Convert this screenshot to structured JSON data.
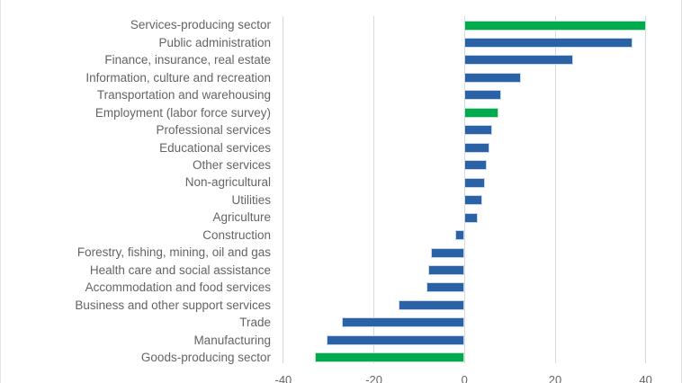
{
  "chart_data": {
    "type": "bar",
    "orientation": "horizontal",
    "title": "",
    "xlabel": "",
    "ylabel": "",
    "legend": "none",
    "grid": "vertical",
    "xlim": [
      -40,
      40
    ],
    "x_ticks": [
      -40,
      -20,
      0,
      20,
      40
    ],
    "x_tick_labels": [
      "-40",
      "-20",
      "0",
      "20",
      "40"
    ],
    "categories": [
      "Services-producing sector",
      "Public administration",
      "Finance, insurance, real estate",
      "Information, culture and recreation",
      "Transportation and warehousing",
      "Employment (labor force survey)",
      "Professional services",
      "Educational services",
      "Other services",
      "Non-agricultural",
      "Utilities",
      "Agriculture",
      "Construction",
      "Forestry, fishing, mining, oil and gas",
      "Health care and social assistance",
      "Accommodation and food services",
      "Business and other support services",
      "Trade",
      "Manufacturing",
      "Goods-producing sector"
    ],
    "values": [
      40,
      37,
      24,
      12.5,
      8,
      7.5,
      6,
      5.5,
      5,
      4.5,
      4,
      3,
      -2,
      -7.5,
      -8,
      -8.5,
      -14.5,
      -27,
      -30.5,
      -33
    ],
    "bar_color_keys": [
      "green",
      "blue",
      "blue",
      "blue",
      "blue",
      "green",
      "blue",
      "blue",
      "blue",
      "blue",
      "blue",
      "blue",
      "blue",
      "blue",
      "blue",
      "blue",
      "blue",
      "blue",
      "blue",
      "green"
    ],
    "highlighted_categories": [
      "Services-producing sector",
      "Employment (labor force survey)",
      "Goods-producing sector"
    ]
  },
  "colors": {
    "bar_blue": "#2A62A5",
    "bar_blue_border": "#C9D7EA",
    "bar_green": "#00AB4E",
    "bar_green_border": "#B9E4C9",
    "gridline": "#D9D9D9",
    "category_label_text": "#646464",
    "tick_label_text": "#666666",
    "background": "#FFFFFF"
  }
}
